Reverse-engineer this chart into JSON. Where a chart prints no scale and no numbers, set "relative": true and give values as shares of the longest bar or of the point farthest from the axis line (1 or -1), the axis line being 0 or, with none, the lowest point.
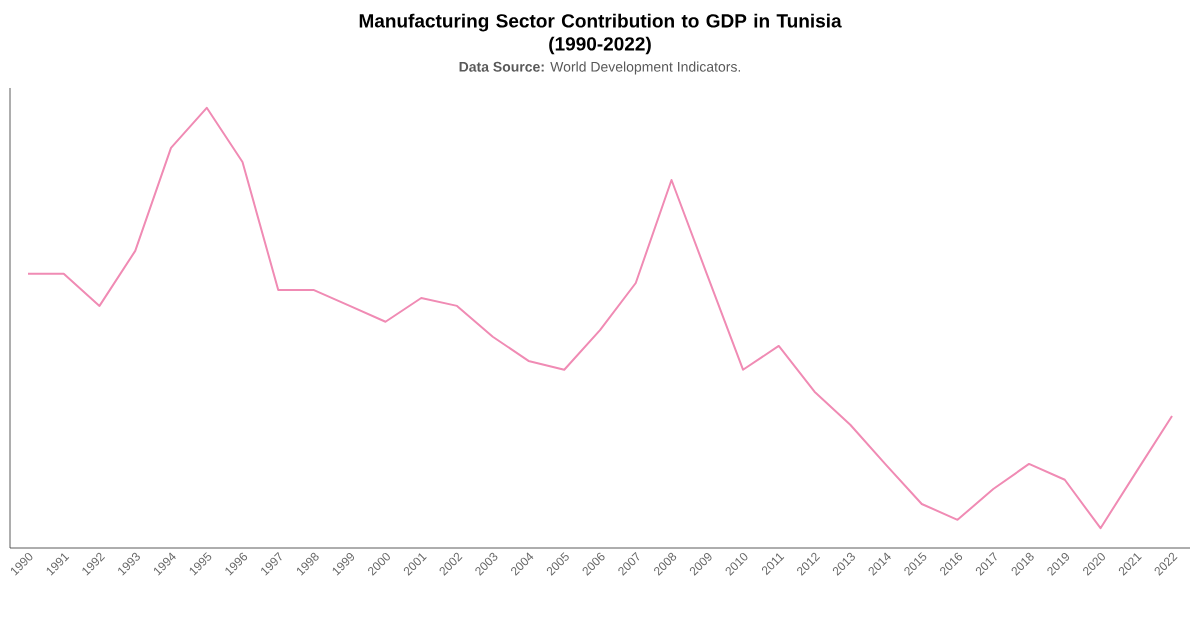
{
  "chart_data": {
    "type": "line",
    "title": "Manufacturing Sector Contribution to GDP in Tunisia\n(1990-2022)",
    "subtitle": "**Data Source:** World Development Indicators.",
    "relative": true,
    "color": "#f08bb4",
    "categories": [
      "1990",
      "1991",
      "1992",
      "1993",
      "1994",
      "1995",
      "1996",
      "1997",
      "1998",
      "1999",
      "2000",
      "2001",
      "2002",
      "2003",
      "2004",
      "2005",
      "2006",
      "2007",
      "2008",
      "2009",
      "2010",
      "2011",
      "2012",
      "2013",
      "2014",
      "2015",
      "2016",
      "2017",
      "2018",
      "2019",
      "2020",
      "2021",
      "2022"
    ],
    "values": [
      0.623,
      0.623,
      0.55,
      0.675,
      0.909,
      1,
      0.877,
      0.586,
      0.586,
      0.55,
      0.514,
      0.568,
      0.55,
      0.48,
      0.425,
      0.405,
      0.495,
      0.602,
      0.836,
      0.62,
      0.405,
      0.459,
      0.355,
      0.28,
      0.189,
      0.1,
      0.064,
      0.134,
      0.191,
      0.155,
      0.045,
      0.173,
      0.3
    ]
  }
}
